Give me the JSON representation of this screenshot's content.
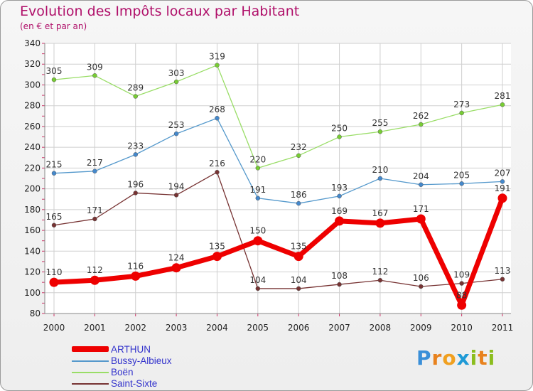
{
  "title": "Evolution des Impôts locaux par Habitant",
  "subtitle": "(en € et par an)",
  "logo": {
    "letters": [
      "P",
      "r",
      "o",
      "x",
      "i",
      "t",
      "i"
    ],
    "colors": [
      "#3a8fd8",
      "#e8821e",
      "#f0a020",
      "#1f9ad6",
      "#8bbd1e",
      "#e8821e",
      "#8bbd1e"
    ]
  },
  "chart_data": {
    "type": "line",
    "title": "Evolution des Impôts locaux par Habitant",
    "subtitle": "(en € et par an)",
    "xlabel": "",
    "ylabel": "",
    "ylim": [
      80,
      340
    ],
    "yticks": [
      "80",
      "100",
      "120",
      "140",
      "160",
      "180",
      "200",
      "220",
      "240",
      "260",
      "280",
      "300",
      "320",
      "340"
    ],
    "categories": [
      "2000",
      "2001",
      "2002",
      "2003",
      "2004",
      "2005",
      "2006",
      "2007",
      "2008",
      "2009",
      "2010",
      "2011"
    ],
    "grid": true,
    "legend_position": "bottom-left",
    "series": [
      {
        "name": "Boën",
        "color": "#99dd66",
        "marker_color": "#77cc33",
        "values": [
          305,
          309,
          289,
          303,
          319,
          220,
          232,
          250,
          255,
          262,
          273,
          281
        ],
        "labels": [
          "305",
          "309",
          "289",
          "303",
          "319",
          "220",
          "232",
          "250",
          "255",
          "262",
          "273",
          "281"
        ],
        "emphasis": false
      },
      {
        "name": "Bussy-Albieux",
        "color": "#5599cc",
        "marker_color": "#4488cc",
        "values": [
          215,
          217,
          233,
          253,
          268,
          191,
          186,
          193,
          210,
          204,
          205,
          207
        ],
        "labels": [
          "215",
          "217",
          "233",
          "253",
          "268",
          "191",
          "186",
          "193",
          "210",
          "204",
          "205",
          "207"
        ],
        "emphasis": false
      },
      {
        "name": "Saint-Sixte",
        "color": "#773333",
        "marker_color": "#773333",
        "values": [
          165,
          171,
          196,
          194,
          216,
          104,
          104,
          108,
          112,
          106,
          109,
          113
        ],
        "labels": [
          "165",
          "171",
          "196",
          "194",
          "216",
          "104",
          "104",
          "108",
          "112",
          "106",
          "109",
          "113"
        ],
        "emphasis": false
      },
      {
        "name": "ARTHUN",
        "color": "#ee0000",
        "marker_color": "#ee0000",
        "values": [
          110,
          112,
          116,
          124,
          135,
          150,
          135,
          169,
          167,
          171,
          88,
          191
        ],
        "labels": [
          "110",
          "112",
          "116",
          "124",
          "135",
          "150",
          "135",
          "169",
          "167",
          "171",
          "88",
          "191"
        ],
        "emphasis": true
      }
    ],
    "legend": [
      "ARTHUN",
      "Bussy-Albieux",
      "Boën",
      "Saint-Sixte"
    ]
  }
}
